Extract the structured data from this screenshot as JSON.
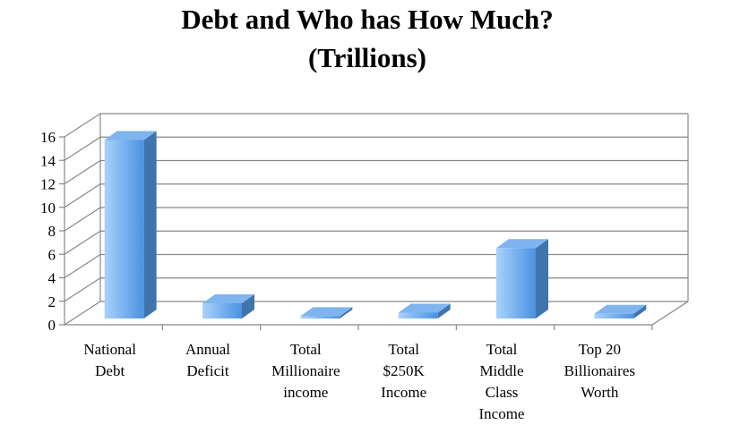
{
  "chart_data": {
    "type": "bar3d",
    "title": "Debt and Who has How Much?\n(Trillions)",
    "categories": [
      "National\nDebt",
      "Annual\nDeficit",
      "Total\nMillionaire\nincome",
      "Total\n$250K\nIncome",
      "Total\nMiddle\nClass\nIncome",
      "Top 20\nBillionaires\nWorth"
    ],
    "values": [
      15.2,
      1.3,
      0.2,
      0.5,
      6.0,
      0.4
    ],
    "color": "#5a9ee8",
    "ylim": [
      0,
      16
    ],
    "yticks": [
      0,
      2,
      4,
      6,
      8,
      10,
      12,
      14,
      16
    ],
    "grid": true
  }
}
